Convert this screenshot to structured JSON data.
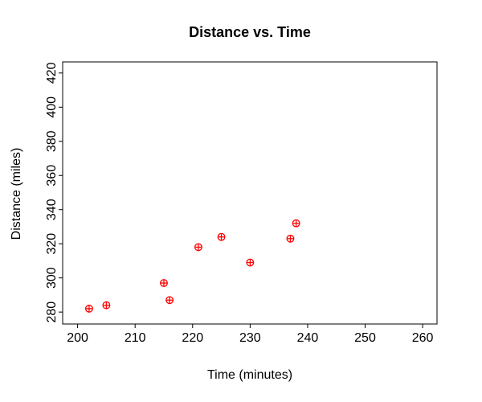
{
  "title": "Distance vs. Time",
  "chart_data": {
    "type": "scatter",
    "title": "Distance vs. Time",
    "xlabel": "Time (minutes)",
    "ylabel": "Distance (miles)",
    "x": [
      202,
      205,
      215,
      216,
      221,
      225,
      230,
      237,
      238
    ],
    "y": [
      282,
      284,
      297,
      287,
      318,
      324,
      309,
      323,
      332
    ],
    "xticks": [
      200,
      210,
      220,
      230,
      240,
      250,
      260
    ],
    "yticks": [
      280,
      300,
      320,
      340,
      360,
      380,
      400,
      420
    ],
    "xlim": [
      197.4,
      262.5
    ],
    "ylim": [
      273,
      426.5
    ],
    "grid": false,
    "legend": "none",
    "marker": {
      "shape": "circle-plus",
      "color": "#ff0000"
    },
    "axis_color": "#000000",
    "background_color": "#ffffff"
  }
}
